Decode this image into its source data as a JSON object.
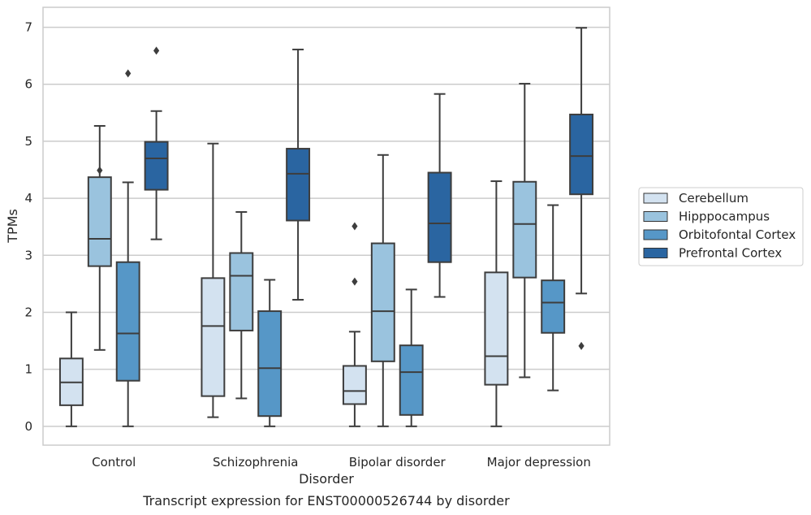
{
  "chart_data": {
    "type": "box",
    "caption": "Transcript expression for ENST00000526744 by disorder",
    "xlabel": "Disorder",
    "ylabel": "TPMs",
    "ylim": [
      -0.33,
      7.35
    ],
    "yticks": [
      0,
      1,
      2,
      3,
      4,
      5,
      6,
      7
    ],
    "grid": true,
    "legend_position": "right",
    "categories": [
      "Control",
      "Schizophrenia",
      "Bipolar disorder",
      "Major depression"
    ],
    "series": [
      {
        "name": "Cerebellum",
        "color": "#d3e2f0",
        "boxes": [
          {
            "whislo": 0.0,
            "q1": 0.37,
            "med": 0.77,
            "q3": 1.19,
            "whishi": 2.0,
            "fliers": []
          },
          {
            "whislo": 0.16,
            "q1": 0.53,
            "med": 1.76,
            "q3": 2.6,
            "whishi": 4.96,
            "fliers": []
          },
          {
            "whislo": 0.0,
            "q1": 0.39,
            "med": 0.62,
            "q3": 1.06,
            "whishi": 1.66,
            "fliers": [
              2.54,
              3.51
            ]
          },
          {
            "whislo": 0.0,
            "q1": 0.73,
            "med": 1.23,
            "q3": 2.7,
            "whishi": 4.3,
            "fliers": []
          }
        ]
      },
      {
        "name": "Hipppocampus",
        "color": "#9ac3de",
        "boxes": [
          {
            "whislo": 1.34,
            "q1": 2.81,
            "med": 3.29,
            "q3": 4.37,
            "whishi": 5.27,
            "fliers": [
              4.49
            ]
          },
          {
            "whislo": 0.49,
            "q1": 1.68,
            "med": 2.64,
            "q3": 3.04,
            "whishi": 3.76,
            "fliers": []
          },
          {
            "whislo": 0.0,
            "q1": 1.14,
            "med": 2.02,
            "q3": 3.21,
            "whishi": 4.76,
            "fliers": []
          },
          {
            "whislo": 0.86,
            "q1": 2.61,
            "med": 3.55,
            "q3": 4.29,
            "whishi": 6.01,
            "fliers": []
          }
        ]
      },
      {
        "name": "Orbitofontal Cortex",
        "color": "#5697c7",
        "boxes": [
          {
            "whislo": 0.0,
            "q1": 0.8,
            "med": 1.63,
            "q3": 2.88,
            "whishi": 4.28,
            "fliers": [
              6.19
            ]
          },
          {
            "whislo": 0.0,
            "q1": 0.18,
            "med": 1.02,
            "q3": 2.02,
            "whishi": 2.57,
            "fliers": []
          },
          {
            "whislo": 0.0,
            "q1": 0.2,
            "med": 0.95,
            "q3": 1.42,
            "whishi": 2.4,
            "fliers": []
          },
          {
            "whislo": 0.63,
            "q1": 1.64,
            "med": 2.17,
            "q3": 2.56,
            "whishi": 3.88,
            "fliers": []
          }
        ]
      },
      {
        "name": "Prefrontal Cortex",
        "color": "#2a65a1",
        "boxes": [
          {
            "whislo": 3.28,
            "q1": 4.15,
            "med": 4.7,
            "q3": 4.99,
            "whishi": 5.53,
            "fliers": [
              6.59
            ]
          },
          {
            "whislo": 2.22,
            "q1": 3.61,
            "med": 4.43,
            "q3": 4.87,
            "whishi": 6.61,
            "fliers": []
          },
          {
            "whislo": 2.27,
            "q1": 2.88,
            "med": 3.56,
            "q3": 4.45,
            "whishi": 5.83,
            "fliers": []
          },
          {
            "whislo": 2.33,
            "q1": 4.07,
            "med": 4.74,
            "q3": 5.47,
            "whishi": 6.99,
            "fliers": [
              1.41
            ]
          }
        ]
      }
    ]
  }
}
